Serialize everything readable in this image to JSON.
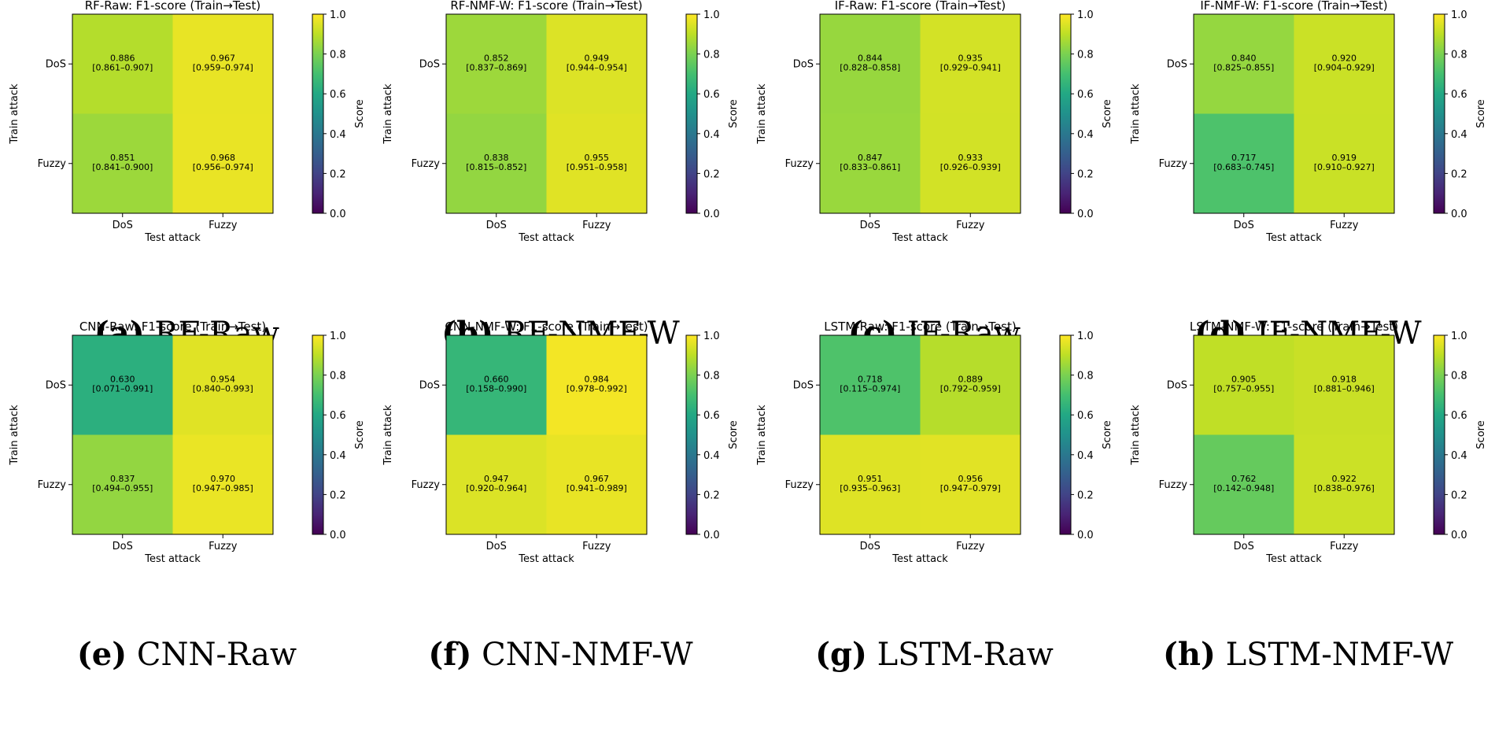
{
  "figure": {
    "colorbar": {
      "label": "Score",
      "ticks": [
        "0.0",
        "0.2",
        "0.4",
        "0.6",
        "0.8",
        "1.0"
      ]
    }
  },
  "chart_data": [
    {
      "type": "heatmap",
      "id": "rf-raw",
      "caption_label": "(a)",
      "caption_text": "RF-Raw",
      "title": "RF-Raw: F1-score (Train→Test)",
      "xlabel": "Test attack",
      "ylabel": "Train attack",
      "x_categories": [
        "DoS",
        "Fuzzy"
      ],
      "y_categories": [
        "DoS",
        "Fuzzy"
      ],
      "vmin": 0.0,
      "vmax": 1.0,
      "colormap": "viridis",
      "values": [
        [
          0.886,
          0.967
        ],
        [
          0.851,
          0.968
        ]
      ],
      "cell_text": [
        [
          "0.886",
          "0.967"
        ],
        [
          "0.851",
          "0.968"
        ]
      ],
      "ci_text": [
        [
          "[0.861–0.907]",
          "[0.959–0.974]"
        ],
        [
          "[0.841–0.900]",
          "[0.956–0.974]"
        ]
      ]
    },
    {
      "type": "heatmap",
      "id": "rf-nmf-w",
      "caption_label": "(b)",
      "caption_text": "RF-NMF-W",
      "title": "RF-NMF-W: F1-score (Train→Test)",
      "xlabel": "Test attack",
      "ylabel": "Train attack",
      "x_categories": [
        "DoS",
        "Fuzzy"
      ],
      "y_categories": [
        "DoS",
        "Fuzzy"
      ],
      "vmin": 0.0,
      "vmax": 1.0,
      "colormap": "viridis",
      "values": [
        [
          0.852,
          0.949
        ],
        [
          0.838,
          0.955
        ]
      ],
      "cell_text": [
        [
          "0.852",
          "0.949"
        ],
        [
          "0.838",
          "0.955"
        ]
      ],
      "ci_text": [
        [
          "[0.837–0.869]",
          "[0.944–0.954]"
        ],
        [
          "[0.815–0.852]",
          "[0.951–0.958]"
        ]
      ]
    },
    {
      "type": "heatmap",
      "id": "if-raw",
      "caption_label": "(c)",
      "caption_text": "IF-Raw",
      "title": "IF-Raw: F1-score (Train→Test)",
      "xlabel": "Test attack",
      "ylabel": "Train attack",
      "x_categories": [
        "DoS",
        "Fuzzy"
      ],
      "y_categories": [
        "DoS",
        "Fuzzy"
      ],
      "vmin": 0.0,
      "vmax": 1.0,
      "colormap": "viridis",
      "values": [
        [
          0.844,
          0.935
        ],
        [
          0.847,
          0.933
        ]
      ],
      "cell_text": [
        [
          "0.844",
          "0.935"
        ],
        [
          "0.847",
          "0.933"
        ]
      ],
      "ci_text": [
        [
          "[0.828–0.858]",
          "[0.929–0.941]"
        ],
        [
          "[0.833–0.861]",
          "[0.926–0.939]"
        ]
      ]
    },
    {
      "type": "heatmap",
      "id": "if-nmf-w",
      "caption_label": "(d)",
      "caption_text": "IF-NMF-W",
      "title": "IF-NMF-W: F1-score (Train→Test)",
      "xlabel": "Test attack",
      "ylabel": "Train attack",
      "x_categories": [
        "DoS",
        "Fuzzy"
      ],
      "y_categories": [
        "DoS",
        "Fuzzy"
      ],
      "vmin": 0.0,
      "vmax": 1.0,
      "colormap": "viridis",
      "values": [
        [
          0.84,
          0.92
        ],
        [
          0.717,
          0.919
        ]
      ],
      "cell_text": [
        [
          "0.840",
          "0.920"
        ],
        [
          "0.717",
          "0.919"
        ]
      ],
      "ci_text": [
        [
          "[0.825–0.855]",
          "[0.904–0.929]"
        ],
        [
          "[0.683–0.745]",
          "[0.910–0.927]"
        ]
      ]
    },
    {
      "type": "heatmap",
      "id": "cnn-raw",
      "caption_label": "(e)",
      "caption_text": "CNN-Raw",
      "title": "CNN-Raw: F1-score (Train→Test)",
      "xlabel": "Test attack",
      "ylabel": "Train attack",
      "x_categories": [
        "DoS",
        "Fuzzy"
      ],
      "y_categories": [
        "DoS",
        "Fuzzy"
      ],
      "vmin": 0.0,
      "vmax": 1.0,
      "colormap": "viridis",
      "values": [
        [
          0.63,
          0.954
        ],
        [
          0.837,
          0.97
        ]
      ],
      "cell_text": [
        [
          "0.630",
          "0.954"
        ],
        [
          "0.837",
          "0.970"
        ]
      ],
      "ci_text": [
        [
          "[0.071–0.991]",
          "[0.840–0.993]"
        ],
        [
          "[0.494–0.955]",
          "[0.947–0.985]"
        ]
      ]
    },
    {
      "type": "heatmap",
      "id": "cnn-nmf-w",
      "caption_label": "(f)",
      "caption_text": "CNN-NMF-W",
      "title": "CNN-NMF-W: F1-score (Train→Test)",
      "xlabel": "Test attack",
      "ylabel": "Train attack",
      "x_categories": [
        "DoS",
        "Fuzzy"
      ],
      "y_categories": [
        "DoS",
        "Fuzzy"
      ],
      "vmin": 0.0,
      "vmax": 1.0,
      "colormap": "viridis",
      "values": [
        [
          0.66,
          0.984
        ],
        [
          0.947,
          0.967
        ]
      ],
      "cell_text": [
        [
          "0.660",
          "0.984"
        ],
        [
          "0.947",
          "0.967"
        ]
      ],
      "ci_text": [
        [
          "[0.158–0.990]",
          "[0.978–0.992]"
        ],
        [
          "[0.920–0.964]",
          "[0.941–0.989]"
        ]
      ]
    },
    {
      "type": "heatmap",
      "id": "lstm-raw",
      "caption_label": "(g)",
      "caption_text": "LSTM-Raw",
      "title": "LSTM-Raw: F1-score (Train→Test)",
      "xlabel": "Test attack",
      "ylabel": "Train attack",
      "x_categories": [
        "DoS",
        "Fuzzy"
      ],
      "y_categories": [
        "DoS",
        "Fuzzy"
      ],
      "vmin": 0.0,
      "vmax": 1.0,
      "colormap": "viridis",
      "values": [
        [
          0.718,
          0.889
        ],
        [
          0.951,
          0.956
        ]
      ],
      "cell_text": [
        [
          "0.718",
          "0.889"
        ],
        [
          "0.951",
          "0.956"
        ]
      ],
      "ci_text": [
        [
          "[0.115–0.974]",
          "[0.792–0.959]"
        ],
        [
          "[0.935–0.963]",
          "[0.947–0.979]"
        ]
      ]
    },
    {
      "type": "heatmap",
      "id": "lstm-nmf-w",
      "caption_label": "(h)",
      "caption_text": "LSTM-NMF-W",
      "title": "LSTM-NMF-W: F1-score (Train→Test)",
      "xlabel": "Test attack",
      "ylabel": "Train attack",
      "x_categories": [
        "DoS",
        "Fuzzy"
      ],
      "y_categories": [
        "DoS",
        "Fuzzy"
      ],
      "vmin": 0.0,
      "vmax": 1.0,
      "colormap": "viridis",
      "values": [
        [
          0.905,
          0.918
        ],
        [
          0.762,
          0.922
        ]
      ],
      "cell_text": [
        [
          "0.905",
          "0.918"
        ],
        [
          "0.762",
          "0.922"
        ]
      ],
      "ci_text": [
        [
          "[0.757–0.955]",
          "[0.881–0.946]"
        ],
        [
          "[0.142–0.948]",
          "[0.838–0.976]"
        ]
      ]
    }
  ]
}
